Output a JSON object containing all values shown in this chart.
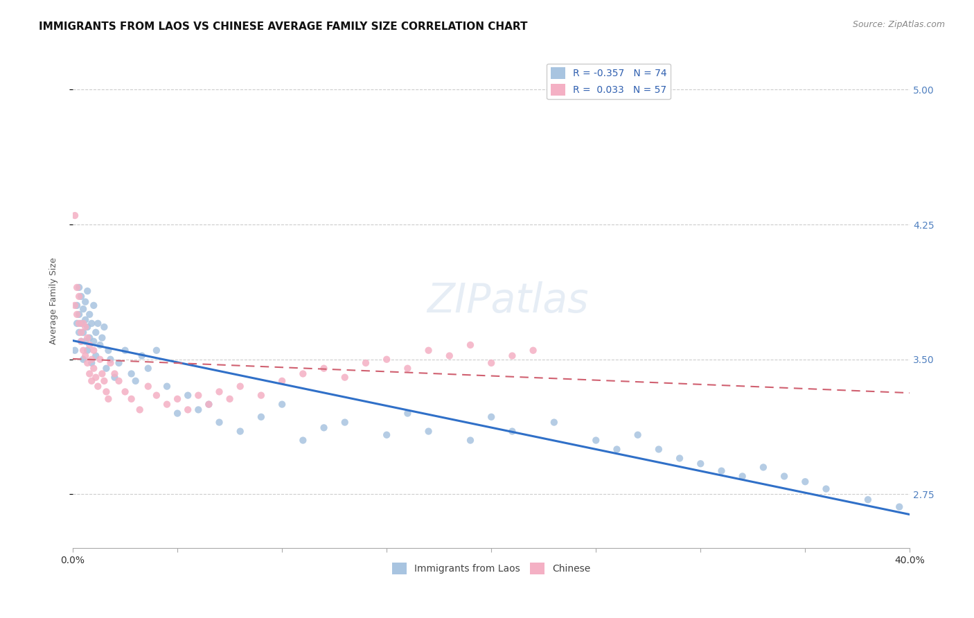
{
  "title": "IMMIGRANTS FROM LAOS VS CHINESE AVERAGE FAMILY SIZE CORRELATION CHART",
  "source": "Source: ZipAtlas.com",
  "ylabel": "Average Family Size",
  "yticks": [
    2.75,
    3.5,
    4.25,
    5.0
  ],
  "xmin": 0.0,
  "xmax": 0.4,
  "ymin": 2.45,
  "ymax": 5.2,
  "legend_label1": "Immigrants from Laos",
  "legend_label2": "Chinese",
  "legend_R1": "R = -0.357",
  "legend_N1": "N = 74",
  "legend_R2": "R =  0.033",
  "legend_N2": "N = 57",
  "color_laos": "#a8c4e0",
  "color_chinese": "#f4b0c4",
  "trendline_laos_color": "#3070c8",
  "trendline_chinese_color": "#d06070",
  "watermark": "ZIPatlas",
  "laos_x": [
    0.001,
    0.002,
    0.002,
    0.003,
    0.003,
    0.003,
    0.004,
    0.004,
    0.004,
    0.005,
    0.005,
    0.005,
    0.006,
    0.006,
    0.006,
    0.007,
    0.007,
    0.007,
    0.008,
    0.008,
    0.009,
    0.009,
    0.01,
    0.01,
    0.011,
    0.011,
    0.012,
    0.013,
    0.014,
    0.015,
    0.016,
    0.017,
    0.018,
    0.02,
    0.022,
    0.025,
    0.028,
    0.03,
    0.033,
    0.036,
    0.04,
    0.045,
    0.05,
    0.055,
    0.06,
    0.065,
    0.07,
    0.08,
    0.09,
    0.1,
    0.11,
    0.12,
    0.13,
    0.15,
    0.16,
    0.17,
    0.19,
    0.2,
    0.21,
    0.23,
    0.25,
    0.26,
    0.27,
    0.28,
    0.29,
    0.3,
    0.31,
    0.32,
    0.33,
    0.34,
    0.35,
    0.36,
    0.38,
    0.395
  ],
  "laos_y": [
    3.55,
    3.8,
    3.7,
    3.9,
    3.75,
    3.65,
    3.85,
    3.7,
    3.6,
    3.78,
    3.65,
    3.5,
    3.72,
    3.6,
    3.82,
    3.68,
    3.55,
    3.88,
    3.75,
    3.62,
    3.7,
    3.48,
    3.8,
    3.6,
    3.65,
    3.52,
    3.7,
    3.58,
    3.62,
    3.68,
    3.45,
    3.55,
    3.5,
    3.4,
    3.48,
    3.55,
    3.42,
    3.38,
    3.52,
    3.45,
    3.55,
    3.35,
    3.2,
    3.3,
    3.22,
    3.25,
    3.15,
    3.1,
    3.18,
    3.25,
    3.05,
    3.12,
    3.15,
    3.08,
    3.2,
    3.1,
    3.05,
    3.18,
    3.1,
    3.15,
    3.05,
    3.0,
    3.08,
    3.0,
    2.95,
    2.92,
    2.88,
    2.85,
    2.9,
    2.85,
    2.82,
    2.78,
    2.72,
    2.68
  ],
  "chinese_x": [
    0.001,
    0.001,
    0.002,
    0.002,
    0.003,
    0.003,
    0.004,
    0.004,
    0.005,
    0.005,
    0.006,
    0.006,
    0.007,
    0.007,
    0.008,
    0.008,
    0.009,
    0.009,
    0.01,
    0.01,
    0.011,
    0.012,
    0.013,
    0.014,
    0.015,
    0.016,
    0.017,
    0.018,
    0.02,
    0.022,
    0.025,
    0.028,
    0.032,
    0.036,
    0.04,
    0.045,
    0.05,
    0.055,
    0.06,
    0.065,
    0.07,
    0.075,
    0.08,
    0.09,
    0.1,
    0.11,
    0.12,
    0.13,
    0.14,
    0.15,
    0.16,
    0.17,
    0.18,
    0.19,
    0.2,
    0.21,
    0.22
  ],
  "chinese_y": [
    4.3,
    3.8,
    3.9,
    3.75,
    3.85,
    3.7,
    3.65,
    3.6,
    3.7,
    3.55,
    3.68,
    3.52,
    3.62,
    3.48,
    3.58,
    3.42,
    3.5,
    3.38,
    3.45,
    3.55,
    3.4,
    3.35,
    3.5,
    3.42,
    3.38,
    3.32,
    3.28,
    3.48,
    3.42,
    3.38,
    3.32,
    3.28,
    3.22,
    3.35,
    3.3,
    3.25,
    3.28,
    3.22,
    3.3,
    3.25,
    3.32,
    3.28,
    3.35,
    3.3,
    3.38,
    3.42,
    3.45,
    3.4,
    3.48,
    3.5,
    3.45,
    3.55,
    3.52,
    3.58,
    3.48,
    3.52,
    3.55
  ],
  "title_fontsize": 11,
  "source_fontsize": 9,
  "axis_label_fontsize": 9,
  "tick_fontsize": 10,
  "legend_fontsize": 10,
  "watermark_fontsize": 42,
  "watermark_alpha": 0.35,
  "background_color": "#ffffff",
  "grid_color": "#cccccc",
  "right_tick_color": "#5080c0"
}
